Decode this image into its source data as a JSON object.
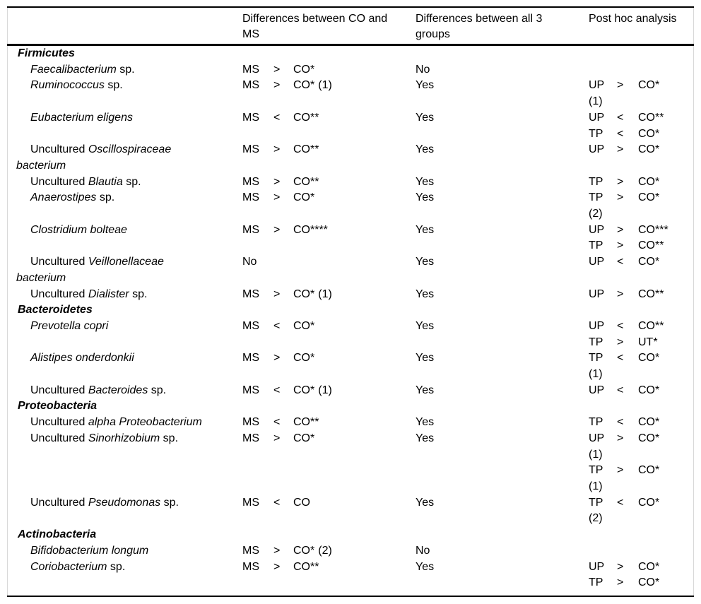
{
  "table": {
    "header": {
      "taxa_label": "",
      "co_ms_lines": [
        "Differences between CO and",
        "MS"
      ],
      "all3_lines": [
        "Differences between all 3",
        "groups"
      ],
      "post_hoc_lines": [
        "Post hoc analysis"
      ]
    },
    "rows": [
      {
        "type": "phylum",
        "name_lines": [
          [
            {
              "t": "Firmicutes",
              "i": true
            }
          ]
        ],
        "co_ms": null,
        "all3": "",
        "post_hoc": []
      },
      {
        "type": "species",
        "name_lines": [
          [
            {
              "t": "Faecalibacterium",
              "i": true
            },
            {
              "t": " sp.",
              "i": false
            }
          ]
        ],
        "co_ms": {
          "l": "MS",
          "op": ">",
          "r": "CO*"
        },
        "all3": "No",
        "post_hoc": []
      },
      {
        "type": "species",
        "name_lines": [
          [
            {
              "t": "Ruminococcus",
              "i": true
            },
            {
              "t": " sp.",
              "i": false
            }
          ]
        ],
        "co_ms": {
          "l": "MS",
          "op": ">",
          "r": "CO*",
          "note": "(1)"
        },
        "all3": "Yes",
        "post_hoc": [
          {
            "l": "UP",
            "op": ">",
            "r": "CO*",
            "note": "(1)"
          }
        ]
      },
      {
        "type": "species",
        "name_lines": [
          [
            {
              "t": "Eubacterium eligens",
              "i": true
            }
          ]
        ],
        "co_ms": {
          "l": "MS",
          "op": "<",
          "r": "CO**"
        },
        "all3": "Yes",
        "post_hoc": [
          {
            "l": "UP",
            "op": "<",
            "r": "CO**"
          },
          {
            "l": "TP",
            "op": "<",
            "r": "CO*"
          }
        ]
      },
      {
        "type": "species",
        "name_lines": [
          [
            {
              "t": "Uncultured ",
              "i": false
            },
            {
              "t": "Oscillospiraceae",
              "i": true
            }
          ],
          [
            {
              "t": "bacterium",
              "i": true
            }
          ]
        ],
        "co_ms": {
          "l": "MS",
          "op": ">",
          "r": "CO**"
        },
        "all3": "Yes",
        "post_hoc": [
          {
            "l": "UP",
            "op": ">",
            "r": "CO*"
          }
        ]
      },
      {
        "type": "species",
        "name_lines": [
          [
            {
              "t": "Uncultured ",
              "i": false
            },
            {
              "t": "Blautia",
              "i": true
            },
            {
              "t": " sp.",
              "i": false
            }
          ]
        ],
        "co_ms": {
          "l": "MS",
          "op": ">",
          "r": "CO**"
        },
        "all3": "Yes",
        "post_hoc": [
          {
            "l": "TP",
            "op": ">",
            "r": "CO*"
          }
        ]
      },
      {
        "type": "species",
        "name_lines": [
          [
            {
              "t": "Anaerostipes",
              "i": true
            },
            {
              "t": " sp.",
              "i": false
            }
          ]
        ],
        "co_ms": {
          "l": "MS",
          "op": ">",
          "r": "CO*"
        },
        "all3": "Yes",
        "post_hoc": [
          {
            "l": "TP",
            "op": ">",
            "r": "CO*",
            "note": "(2)"
          }
        ]
      },
      {
        "type": "species",
        "name_lines": [
          [
            {
              "t": "Clostridium bolteae",
              "i": true
            }
          ]
        ],
        "co_ms": {
          "l": "MS",
          "op": ">",
          "r": "CO****"
        },
        "all3": "Yes",
        "post_hoc": [
          {
            "l": "UP",
            "op": ">",
            "r": "CO***"
          },
          {
            "l": "TP",
            "op": ">",
            "r": "CO**"
          }
        ]
      },
      {
        "type": "species",
        "name_lines": [
          [
            {
              "t": "Uncultured ",
              "i": false
            },
            {
              "t": "Veillonellaceae",
              "i": true
            }
          ],
          [
            {
              "t": "bacterium",
              "i": true
            }
          ]
        ],
        "co_ms": {
          "text": "No"
        },
        "all3": "Yes",
        "post_hoc": [
          {
            "l": "UP",
            "op": "<",
            "r": "CO*"
          }
        ]
      },
      {
        "type": "species",
        "name_lines": [
          [
            {
              "t": "Uncultured ",
              "i": false
            },
            {
              "t": "Dialister",
              "i": true
            },
            {
              "t": " sp.",
              "i": false
            }
          ]
        ],
        "co_ms": {
          "l": "MS",
          "op": ">",
          "r": "CO*",
          "note": "(1)"
        },
        "all3": "Yes",
        "post_hoc": [
          {
            "l": "UP",
            "op": ">",
            "r": "CO**"
          }
        ]
      },
      {
        "type": "phylum",
        "name_lines": [
          [
            {
              "t": "Bacteroidetes",
              "i": true
            }
          ]
        ],
        "co_ms": null,
        "all3": "",
        "post_hoc": []
      },
      {
        "type": "species",
        "name_lines": [
          [
            {
              "t": "Prevotella copri",
              "i": true
            }
          ]
        ],
        "co_ms": {
          "l": "MS",
          "op": "<",
          "r": "CO*"
        },
        "all3": "Yes",
        "post_hoc": [
          {
            "l": "UP",
            "op": "<",
            "r": "CO**"
          },
          {
            "l": "TP",
            "op": ">",
            "r": "UT*"
          }
        ]
      },
      {
        "type": "species",
        "name_lines": [
          [
            {
              "t": "Alistipes onderdonkii",
              "i": true
            }
          ]
        ],
        "co_ms": {
          "l": "MS",
          "op": ">",
          "r": "CO*"
        },
        "all3": "Yes",
        "post_hoc": [
          {
            "l": "TP",
            "op": "<",
            "r": "CO*",
            "note": "(1)"
          }
        ]
      },
      {
        "type": "species",
        "name_lines": [
          [
            {
              "t": "Uncultured ",
              "i": false
            },
            {
              "t": "Bacteroides",
              "i": true
            },
            {
              "t": " sp.",
              "i": false
            }
          ]
        ],
        "co_ms": {
          "l": "MS",
          "op": "<",
          "r": "CO*",
          "note": "(1)"
        },
        "all3": "Yes",
        "post_hoc": [
          {
            "l": "UP",
            "op": "<",
            "r": "CO*"
          }
        ]
      },
      {
        "type": "phylum",
        "name_lines": [
          [
            {
              "t": "Proteobacteria",
              "i": true
            }
          ]
        ],
        "co_ms": null,
        "all3": "",
        "post_hoc": []
      },
      {
        "type": "species",
        "name_lines": [
          [
            {
              "t": "Uncultured ",
              "i": false
            },
            {
              "t": "alpha Proteobacterium",
              "i": true
            }
          ]
        ],
        "co_ms": {
          "l": "MS",
          "op": "<",
          "r": "CO**"
        },
        "all3": "Yes",
        "post_hoc": [
          {
            "l": "TP",
            "op": "<",
            "r": "CO*"
          }
        ]
      },
      {
        "type": "species",
        "name_lines": [
          [
            {
              "t": "Uncultured ",
              "i": false
            },
            {
              "t": "Sinorhizobium",
              "i": true
            },
            {
              "t": " sp.",
              "i": false
            }
          ]
        ],
        "co_ms": {
          "l": "MS",
          "op": ">",
          "r": "CO*"
        },
        "all3": "Yes",
        "post_hoc": [
          {
            "l": "UP",
            "op": ">",
            "r": "CO*",
            "note": "(1)"
          },
          {
            "l": "TP",
            "op": ">",
            "r": "CO*",
            "note": "(1)"
          }
        ]
      },
      {
        "type": "species",
        "name_lines": [
          [
            {
              "t": "Uncultured ",
              "i": false
            },
            {
              "t": "Pseudomonas",
              "i": true
            },
            {
              "t": " sp.",
              "i": false
            }
          ]
        ],
        "co_ms": {
          "l": "MS",
          "op": "<",
          "r": "CO"
        },
        "all3": "Yes",
        "post_hoc": [
          {
            "l": "TP",
            "op": "<",
            "r": "CO*",
            "note": "(2)"
          }
        ]
      },
      {
        "type": "phylum",
        "name_lines": [
          [
            {
              "t": "Actinobacteria",
              "i": true
            }
          ]
        ],
        "co_ms": null,
        "all3": "",
        "post_hoc": []
      },
      {
        "type": "species",
        "name_lines": [
          [
            {
              "t": "Bifidobacterium longum",
              "i": true
            }
          ]
        ],
        "co_ms": {
          "l": "MS",
          "op": ">",
          "r": "CO*",
          "note": "(2)"
        },
        "all3": "No",
        "post_hoc": []
      },
      {
        "type": "species",
        "name_lines": [
          [
            {
              "t": "Coriobacterium",
              "i": true
            },
            {
              "t": " sp.",
              "i": false
            }
          ]
        ],
        "co_ms": {
          "l": "MS",
          "op": ">",
          "r": "CO**"
        },
        "all3": "Yes",
        "post_hoc": [
          {
            "l": "UP",
            "op": ">",
            "r": "CO*"
          },
          {
            "l": "TP",
            "op": ">",
            "r": "CO*"
          }
        ]
      }
    ]
  }
}
